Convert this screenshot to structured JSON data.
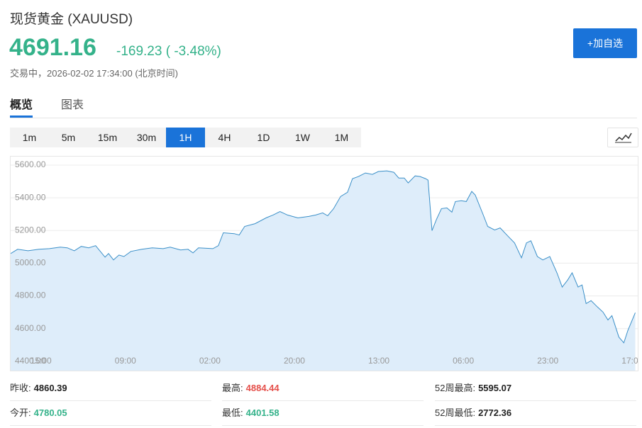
{
  "header": {
    "title": "现货黄金 (XAUUSD)",
    "price": "4691.16",
    "change": "-169.23 ( -3.48%)",
    "status": "交易中，2026-02-02 17:34:00 (北京时间)",
    "button": "+加自选"
  },
  "tabs": [
    "概览",
    "图表"
  ],
  "intervals": {
    "items": [
      "1m",
      "5m",
      "15m",
      "30m",
      "1H",
      "4H",
      "1D",
      "1W",
      "1M"
    ],
    "active": 4
  },
  "chart_data": {
    "type": "area",
    "color": "#3a8fc8",
    "fill": "#deedfa",
    "grid": true,
    "x": [
      -6.1,
      -4.7,
      -2.6,
      -0.4,
      1.7,
      3.9,
      5.3,
      6.7,
      8.1,
      9.6,
      11,
      12.9,
      13.6,
      14.6,
      15.7,
      16.7,
      18.1,
      20.3,
      22.4,
      24.6,
      26,
      28.1,
      29.6,
      30.6,
      31.7,
      34.6,
      35.7,
      36.7,
      38.9,
      39.9,
      41,
      43.1,
      45.3,
      46.7,
      48.1,
      49.6,
      51.7,
      53.9,
      55.3,
      56.7,
      57.7,
      58.9,
      60.3,
      61.7,
      62.7,
      63.9,
      65.3,
      66.7,
      67.9,
      69.6,
      71,
      72,
      73.1,
      73.9,
      75.3,
      76.3,
      77.4,
      77.9,
      78.7,
      79.6,
      80.6,
      81.7,
      82.7,
      83.4,
      84.6,
      85.6,
      86.7,
      87.4,
      88.9,
      89.9,
      91.3,
      92.4,
      93.9,
      95.3,
      96.7,
      97.7,
      98.6,
      99.9,
      101,
      102.4,
      103.9,
      104.9,
      106,
      106.9,
      108.1,
      108.9,
      109.7,
      110.7,
      112,
      113.1,
      114.1,
      114.9,
      116.3,
      117.3,
      118.1,
      119.6
    ],
    "values": [
      5059,
      5085,
      5076,
      5085,
      5089,
      5098,
      5094,
      5076,
      5103,
      5094,
      5107,
      5037,
      5059,
      5020,
      5050,
      5041,
      5072,
      5085,
      5094,
      5089,
      5098,
      5081,
      5085,
      5063,
      5094,
      5089,
      5107,
      5186,
      5181,
      5172,
      5225,
      5242,
      5277,
      5295,
      5316,
      5295,
      5277,
      5286,
      5295,
      5308,
      5290,
      5334,
      5408,
      5434,
      5517,
      5530,
      5552,
      5543,
      5561,
      5565,
      5556,
      5521,
      5521,
      5491,
      5534,
      5530,
      5517,
      5508,
      5199,
      5268,
      5334,
      5338,
      5312,
      5377,
      5382,
      5377,
      5439,
      5417,
      5303,
      5225,
      5203,
      5216,
      5168,
      5124,
      5033,
      5124,
      5137,
      5041,
      5020,
      5041,
      4937,
      4854,
      4897,
      4941,
      4854,
      4867,
      4753,
      4771,
      4732,
      4701,
      4653,
      4679,
      4548,
      4513,
      4588,
      4697
    ],
    "xlim": [
      -6.1,
      120.1
    ],
    "xticks": [
      {
        "value": 0,
        "label": "15:00"
      },
      {
        "value": 17,
        "label": "09:00"
      },
      {
        "value": 34,
        "label": "02:00"
      },
      {
        "value": 51,
        "label": "20:00"
      },
      {
        "value": 68,
        "label": "13:00"
      },
      {
        "value": 85,
        "label": "06:00"
      },
      {
        "value": 102,
        "label": "23:00"
      },
      {
        "value": 119,
        "label": "17:00"
      }
    ],
    "ylim": [
      4343,
      5652
    ],
    "yticks": [
      {
        "value": 4400,
        "label": "4400.00"
      },
      {
        "value": 4600,
        "label": "4600.00"
      },
      {
        "value": 4800,
        "label": "4800.00"
      },
      {
        "value": 5000,
        "label": "5000.00"
      },
      {
        "value": 5200,
        "label": "5200.00"
      },
      {
        "value": 5400,
        "label": "5400.00"
      },
      {
        "value": 5600,
        "label": "5600.00"
      }
    ]
  },
  "stats": {
    "rows": [
      [
        {
          "label": "昨收:",
          "value": "4860.39",
          "color": "#222222"
        },
        {
          "label": "最高:",
          "value": "4884.44",
          "color": "#e5504b"
        },
        {
          "label": "52周最高:",
          "value": "5595.07",
          "color": "#222222"
        }
      ],
      [
        {
          "label": "今开:",
          "value": "4780.05",
          "color": "#34b28a"
        },
        {
          "label": "最低:",
          "value": "4401.58",
          "color": "#34b28a"
        },
        {
          "label": "52周最低:",
          "value": "2772.36",
          "color": "#222222"
        }
      ]
    ]
  }
}
